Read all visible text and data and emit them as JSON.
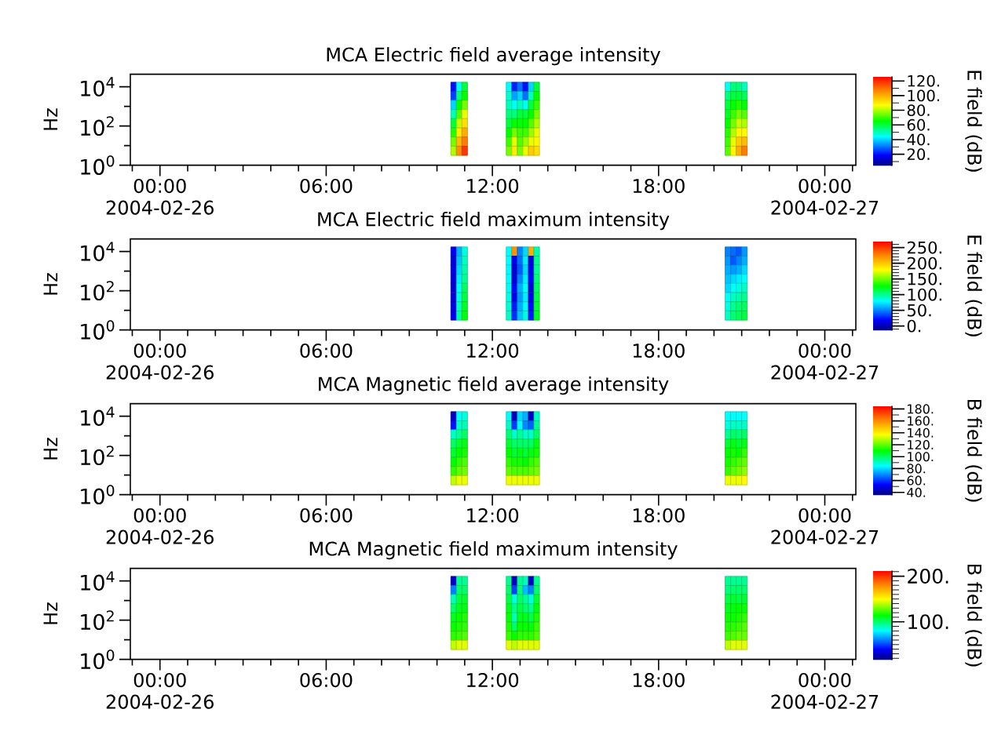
{
  "chart_data": [
    {
      "type": "scatter",
      "title": "MCA  Electric field average intensity",
      "ylabel": "Hz",
      "clabel": "E field (dB)",
      "x": [
        10.6,
        10.6,
        10.6,
        10.6,
        10.6,
        10.6,
        10.6,
        10.6,
        10.8,
        10.8,
        10.8,
        10.8,
        10.8,
        10.8,
        10.8,
        10.8,
        11,
        11,
        11,
        11,
        11,
        11,
        11,
        11,
        12.6,
        12.6,
        12.6,
        12.6,
        12.6,
        12.6,
        12.6,
        12.6,
        12.8,
        12.8,
        12.8,
        12.8,
        12.8,
        12.8,
        12.8,
        12.8,
        13,
        13,
        13,
        13,
        13,
        13,
        13,
        13,
        13.2,
        13.2,
        13.2,
        13.2,
        13.2,
        13.2,
        13.2,
        13.2,
        13.4,
        13.4,
        13.4,
        13.4,
        13.4,
        13.4,
        13.4,
        13.4,
        13.6,
        13.6,
        13.6,
        13.6,
        13.6,
        13.6,
        13.6,
        13.6,
        20.5,
        20.5,
        20.5,
        20.5,
        20.5,
        20.5,
        20.5,
        20.5,
        20.7,
        20.7,
        20.7,
        20.7,
        20.7,
        20.7,
        20.7,
        20.7,
        20.9,
        20.9,
        20.9,
        20.9,
        20.9,
        20.9,
        20.9,
        20.9,
        21.1,
        21.1,
        21.1,
        21.1,
        21.1,
        21.1,
        21.1,
        21.1
      ],
      "values": [
        10000,
        3400,
        1200,
        400,
        140,
        46,
        16,
        5.4,
        10000,
        3400,
        1200,
        400,
        140,
        46,
        16,
        5.4,
        10000,
        3400,
        1200,
        400,
        140,
        46,
        16,
        5.4,
        10000,
        3400,
        1200,
        400,
        140,
        46,
        16,
        5.4,
        10000,
        3400,
        1200,
        400,
        140,
        46,
        16,
        5.4,
        10000,
        3400,
        1200,
        400,
        140,
        46,
        16,
        5.4,
        10000,
        3400,
        1200,
        400,
        140,
        46,
        16,
        5.4,
        10000,
        3400,
        1200,
        400,
        140,
        46,
        16,
        5.4,
        10000,
        3400,
        1200,
        400,
        140,
        46,
        16,
        5.4,
        10000,
        3400,
        1200,
        400,
        140,
        46,
        16,
        5.4,
        10000,
        3400,
        1200,
        400,
        140,
        46,
        16,
        5.4,
        10000,
        3400,
        1200,
        400,
        140,
        46,
        16,
        5.4,
        10000,
        3400,
        1200,
        400,
        140,
        46,
        16,
        5.4
      ],
      "cvalues": [
        20,
        25,
        40,
        50,
        60,
        68,
        75,
        80,
        45,
        55,
        65,
        72,
        82,
        90,
        98,
        105,
        60,
        65,
        75,
        85,
        92,
        100,
        108,
        118,
        45,
        48,
        50,
        55,
        60,
        65,
        70,
        75,
        22,
        35,
        45,
        55,
        65,
        75,
        85,
        90,
        30,
        40,
        50,
        60,
        65,
        70,
        72,
        75,
        20,
        30,
        45,
        60,
        65,
        70,
        78,
        85,
        40,
        50,
        60,
        65,
        72,
        78,
        85,
        95,
        60,
        65,
        70,
        75,
        80,
        85,
        88,
        92,
        45,
        55,
        60,
        62,
        65,
        68,
        70,
        72,
        55,
        60,
        65,
        70,
        75,
        80,
        85,
        88,
        55,
        60,
        68,
        75,
        82,
        88,
        95,
        100,
        50,
        58,
        65,
        72,
        80,
        88,
        98,
        108
      ],
      "xlim": [
        -1.07,
        25.12
      ],
      "xticks": [
        {
          "value": -1,
          "label": null
        },
        {
          "value": 0,
          "label": "00:00\n2004-02-26"
        },
        {
          "value": 1,
          "label": null
        },
        {
          "value": 2,
          "label": null
        },
        {
          "value": 3,
          "label": null
        },
        {
          "value": 4,
          "label": null
        },
        {
          "value": 5,
          "label": null
        },
        {
          "value": 6,
          "label": "06:00"
        },
        {
          "value": 7,
          "label": null
        },
        {
          "value": 8,
          "label": null
        },
        {
          "value": 9,
          "label": null
        },
        {
          "value": 10,
          "label": null
        },
        {
          "value": 11,
          "label": null
        },
        {
          "value": 12,
          "label": "12:00"
        },
        {
          "value": 13,
          "label": null
        },
        {
          "value": 14,
          "label": null
        },
        {
          "value": 15,
          "label": null
        },
        {
          "value": 16,
          "label": null
        },
        {
          "value": 17,
          "label": null
        },
        {
          "value": 18,
          "label": "18:00"
        },
        {
          "value": 19,
          "label": null
        },
        {
          "value": 20,
          "label": null
        },
        {
          "value": 21,
          "label": null
        },
        {
          "value": 22,
          "label": null
        },
        {
          "value": 23,
          "label": null
        },
        {
          "value": 24,
          "label": "00:00\n2004-02-27"
        },
        {
          "value": 25,
          "label": null
        }
      ],
      "ylim": [
        1,
        44000
      ],
      "yticks": [
        {
          "value": 1,
          "label": "10$^{0}$"
        },
        {
          "value": 10,
          "label": null
        },
        {
          "value": 100,
          "label": "10$^{2}$"
        },
        {
          "value": 1000,
          "label": null
        },
        {
          "value": 10000,
          "label": "10$^{4}$"
        }
      ],
      "log": "y",
      "clim": [
        4,
        126
      ],
      "cticks": [
        {
          "value": 10,
          "label": null
        },
        {
          "value": 20,
          "label": "20."
        },
        {
          "value": 30,
          "label": null
        },
        {
          "value": 40,
          "label": "40."
        },
        {
          "value": 50,
          "label": null
        },
        {
          "value": 60,
          "label": "60."
        },
        {
          "value": 70,
          "label": null
        },
        {
          "value": 80,
          "label": "80."
        },
        {
          "value": 90,
          "label": null
        },
        {
          "value": 100,
          "label": "100."
        },
        {
          "value": 110,
          "label": null
        },
        {
          "value": 120,
          "label": "120."
        }
      ],
      "marker": "square"
    },
    {
      "type": "scatter",
      "title": "MCA  Electric field maximum intensity",
      "ylabel": "Hz",
      "clabel": "E field (dB)",
      "x": [
        10.6,
        10.6,
        10.6,
        10.6,
        10.6,
        10.6,
        10.6,
        10.6,
        10.8,
        10.8,
        10.8,
        10.8,
        10.8,
        10.8,
        10.8,
        10.8,
        11,
        11,
        11,
        11,
        11,
        11,
        11,
        11,
        12.6,
        12.6,
        12.6,
        12.6,
        12.6,
        12.6,
        12.6,
        12.6,
        12.8,
        12.8,
        12.8,
        12.8,
        12.8,
        12.8,
        12.8,
        12.8,
        13,
        13,
        13,
        13,
        13,
        13,
        13,
        13,
        13.2,
        13.2,
        13.2,
        13.2,
        13.2,
        13.2,
        13.2,
        13.2,
        13.4,
        13.4,
        13.4,
        13.4,
        13.4,
        13.4,
        13.4,
        13.4,
        13.6,
        13.6,
        13.6,
        13.6,
        13.6,
        13.6,
        13.6,
        13.6,
        20.5,
        20.5,
        20.5,
        20.5,
        20.5,
        20.5,
        20.5,
        20.5,
        20.7,
        20.7,
        20.7,
        20.7,
        20.7,
        20.7,
        20.7,
        20.7,
        20.9,
        20.9,
        20.9,
        20.9,
        20.9,
        20.9,
        20.9,
        20.9,
        21.1,
        21.1,
        21.1,
        21.1,
        21.1,
        21.1,
        21.1,
        21.1
      ],
      "values": [
        10000,
        3400,
        1200,
        400,
        140,
        46,
        16,
        5.4,
        10000,
        3400,
        1200,
        400,
        140,
        46,
        16,
        5.4,
        10000,
        3400,
        1200,
        400,
        140,
        46,
        16,
        5.4,
        10000,
        3400,
        1200,
        400,
        140,
        46,
        16,
        5.4,
        10000,
        3400,
        1200,
        400,
        140,
        46,
        16,
        5.4,
        10000,
        3400,
        1200,
        400,
        140,
        46,
        16,
        5.4,
        10000,
        3400,
        1200,
        400,
        140,
        46,
        16,
        5.4,
        10000,
        3400,
        1200,
        400,
        140,
        46,
        16,
        5.4,
        10000,
        3400,
        1200,
        400,
        140,
        46,
        16,
        5.4,
        10000,
        3400,
        1200,
        400,
        140,
        46,
        16,
        5.4,
        10000,
        3400,
        1200,
        400,
        140,
        46,
        16,
        5.4,
        10000,
        3400,
        1200,
        400,
        140,
        46,
        16,
        5.4,
        10000,
        3400,
        1200,
        400,
        140,
        46,
        16,
        5.4
      ],
      "cvalues": [
        15,
        10,
        12,
        10,
        8,
        10,
        12,
        15,
        60,
        65,
        70,
        75,
        80,
        85,
        90,
        95,
        85,
        90,
        95,
        100,
        110,
        115,
        120,
        125,
        80,
        80,
        78,
        80,
        82,
        85,
        88,
        90,
        220,
        15,
        8,
        10,
        20,
        15,
        25,
        30,
        50,
        45,
        40,
        50,
        60,
        55,
        60,
        65,
        70,
        75,
        70,
        75,
        80,
        75,
        80,
        85,
        210,
        10,
        15,
        20,
        10,
        15,
        20,
        25,
        95,
        100,
        100,
        105,
        110,
        115,
        118,
        120,
        50,
        55,
        60,
        65,
        70,
        80,
        85,
        90,
        45,
        40,
        55,
        70,
        80,
        90,
        100,
        105,
        40,
        50,
        60,
        75,
        85,
        95,
        105,
        110,
        55,
        60,
        70,
        80,
        90,
        100,
        110,
        115
      ],
      "xlim": [
        -1.07,
        25.12
      ],
      "xticks": [
        {
          "value": -1,
          "label": null
        },
        {
          "value": 0,
          "label": "00:00\n2004-02-26"
        },
        {
          "value": 1,
          "label": null
        },
        {
          "value": 2,
          "label": null
        },
        {
          "value": 3,
          "label": null
        },
        {
          "value": 4,
          "label": null
        },
        {
          "value": 5,
          "label": null
        },
        {
          "value": 6,
          "label": "06:00"
        },
        {
          "value": 7,
          "label": null
        },
        {
          "value": 8,
          "label": null
        },
        {
          "value": 9,
          "label": null
        },
        {
          "value": 10,
          "label": null
        },
        {
          "value": 11,
          "label": null
        },
        {
          "value": 12,
          "label": "12:00"
        },
        {
          "value": 13,
          "label": null
        },
        {
          "value": 14,
          "label": null
        },
        {
          "value": 15,
          "label": null
        },
        {
          "value": 16,
          "label": null
        },
        {
          "value": 17,
          "label": null
        },
        {
          "value": 18,
          "label": "18:00"
        },
        {
          "value": 19,
          "label": null
        },
        {
          "value": 20,
          "label": null
        },
        {
          "value": 21,
          "label": null
        },
        {
          "value": 22,
          "label": null
        },
        {
          "value": 23,
          "label": null
        },
        {
          "value": 24,
          "label": "00:00\n2004-02-27"
        },
        {
          "value": 25,
          "label": null
        }
      ],
      "ylim": [
        1,
        44000
      ],
      "yticks": [
        {
          "value": 1,
          "label": "10$^{0}$"
        },
        {
          "value": 10,
          "label": null
        },
        {
          "value": 100,
          "label": "10$^{2}$"
        },
        {
          "value": 1000,
          "label": null
        },
        {
          "value": 10000,
          "label": "10$^{4}$"
        }
      ],
      "log": "y",
      "clim": [
        -15,
        270
      ],
      "cticks": [
        {
          "value": -10,
          "label": null
        },
        {
          "value": 0,
          "label": "0."
        },
        {
          "value": 10,
          "label": null
        },
        {
          "value": 20,
          "label": null
        },
        {
          "value": 30,
          "label": null
        },
        {
          "value": 40,
          "label": null
        },
        {
          "value": 50,
          "label": "50."
        },
        {
          "value": 60,
          "label": null
        },
        {
          "value": 70,
          "label": null
        },
        {
          "value": 80,
          "label": null
        },
        {
          "value": 90,
          "label": null
        },
        {
          "value": 100,
          "label": "100."
        },
        {
          "value": 110,
          "label": null
        },
        {
          "value": 120,
          "label": null
        },
        {
          "value": 130,
          "label": null
        },
        {
          "value": 140,
          "label": null
        },
        {
          "value": 150,
          "label": "150."
        },
        {
          "value": 160,
          "label": null
        },
        {
          "value": 170,
          "label": null
        },
        {
          "value": 180,
          "label": null
        },
        {
          "value": 190,
          "label": null
        },
        {
          "value": 200,
          "label": "200."
        },
        {
          "value": 210,
          "label": null
        },
        {
          "value": 220,
          "label": null
        },
        {
          "value": 230,
          "label": null
        },
        {
          "value": 240,
          "label": null
        },
        {
          "value": 250,
          "label": "250."
        },
        {
          "value": 260,
          "label": null
        }
      ],
      "marker": "square"
    },
    {
      "type": "scatter",
      "title": "MCA  Magnetic field average intensity",
      "ylabel": "Hz",
      "clabel": "B field (dB)",
      "x": [
        10.6,
        10.6,
        10.6,
        10.6,
        10.6,
        10.6,
        10.6,
        10.6,
        10.8,
        10.8,
        10.8,
        10.8,
        10.8,
        10.8,
        10.8,
        10.8,
        11,
        11,
        11,
        11,
        11,
        11,
        11,
        11,
        12.6,
        12.6,
        12.6,
        12.6,
        12.6,
        12.6,
        12.6,
        12.6,
        12.8,
        12.8,
        12.8,
        12.8,
        12.8,
        12.8,
        12.8,
        12.8,
        13,
        13,
        13,
        13,
        13,
        13,
        13,
        13,
        13.2,
        13.2,
        13.2,
        13.2,
        13.2,
        13.2,
        13.2,
        13.2,
        13.4,
        13.4,
        13.4,
        13.4,
        13.4,
        13.4,
        13.4,
        13.4,
        13.6,
        13.6,
        13.6,
        13.6,
        13.6,
        13.6,
        13.6,
        13.6,
        20.5,
        20.5,
        20.5,
        20.5,
        20.5,
        20.5,
        20.5,
        20.5,
        20.7,
        20.7,
        20.7,
        20.7,
        20.7,
        20.7,
        20.7,
        20.7,
        20.9,
        20.9,
        20.9,
        20.9,
        20.9,
        20.9,
        20.9,
        20.9,
        21.1,
        21.1,
        21.1,
        21.1,
        21.1,
        21.1,
        21.1,
        21.1
      ],
      "values": [
        10000,
        3400,
        1200,
        400,
        140,
        46,
        16,
        5.4,
        10000,
        3400,
        1200,
        400,
        140,
        46,
        16,
        5.4,
        10000,
        3400,
        1200,
        400,
        140,
        46,
        16,
        5.4,
        10000,
        3400,
        1200,
        400,
        140,
        46,
        16,
        5.4,
        10000,
        3400,
        1200,
        400,
        140,
        46,
        16,
        5.4,
        10000,
        3400,
        1200,
        400,
        140,
        46,
        16,
        5.4,
        10000,
        3400,
        1200,
        400,
        140,
        46,
        16,
        5.4,
        10000,
        3400,
        1200,
        400,
        140,
        46,
        16,
        5.4,
        10000,
        3400,
        1200,
        400,
        140,
        46,
        16,
        5.4,
        10000,
        3400,
        1200,
        400,
        140,
        46,
        16,
        5.4,
        10000,
        3400,
        1200,
        400,
        140,
        46,
        16,
        5.4,
        10000,
        3400,
        1200,
        400,
        140,
        46,
        16,
        5.4,
        10000,
        3400,
        1200,
        400,
        140,
        46,
        16,
        5.4
      ],
      "cvalues": [
        45,
        55,
        90,
        100,
        105,
        110,
        115,
        130,
        85,
        90,
        95,
        105,
        110,
        115,
        120,
        135,
        88,
        92,
        100,
        108,
        112,
        118,
        122,
        135,
        85,
        90,
        98,
        105,
        110,
        115,
        120,
        135,
        45,
        60,
        90,
        100,
        105,
        112,
        118,
        135,
        80,
        85,
        95,
        100,
        108,
        112,
        118,
        135,
        75,
        70,
        90,
        100,
        105,
        110,
        118,
        135,
        45,
        65,
        90,
        100,
        108,
        115,
        120,
        135,
        90,
        95,
        100,
        108,
        112,
        118,
        122,
        135,
        85,
        88,
        95,
        105,
        110,
        112,
        115,
        135,
        85,
        90,
        100,
        108,
        112,
        115,
        120,
        135,
        85,
        90,
        98,
        105,
        110,
        118,
        122,
        135,
        85,
        90,
        100,
        108,
        115,
        120,
        125,
        138
      ],
      "xlim": [
        -1.07,
        25.12
      ],
      "xticks": [
        {
          "value": -1,
          "label": null
        },
        {
          "value": 0,
          "label": "00:00\n2004-02-26"
        },
        {
          "value": 1,
          "label": null
        },
        {
          "value": 2,
          "label": null
        },
        {
          "value": 3,
          "label": null
        },
        {
          "value": 4,
          "label": null
        },
        {
          "value": 5,
          "label": null
        },
        {
          "value": 6,
          "label": "06:00"
        },
        {
          "value": 7,
          "label": null
        },
        {
          "value": 8,
          "label": null
        },
        {
          "value": 9,
          "label": null
        },
        {
          "value": 10,
          "label": null
        },
        {
          "value": 11,
          "label": null
        },
        {
          "value": 12,
          "label": "12:00"
        },
        {
          "value": 13,
          "label": null
        },
        {
          "value": 14,
          "label": null
        },
        {
          "value": 15,
          "label": null
        },
        {
          "value": 16,
          "label": null
        },
        {
          "value": 17,
          "label": null
        },
        {
          "value": 18,
          "label": "18:00"
        },
        {
          "value": 19,
          "label": null
        },
        {
          "value": 20,
          "label": null
        },
        {
          "value": 21,
          "label": null
        },
        {
          "value": 22,
          "label": null
        },
        {
          "value": 23,
          "label": null
        },
        {
          "value": 24,
          "label": "00:00\n2004-02-27"
        },
        {
          "value": 25,
          "label": null
        }
      ],
      "ylim": [
        1,
        44000
      ],
      "yticks": [
        {
          "value": 1,
          "label": "10$^{0}$"
        },
        {
          "value": 10,
          "label": null
        },
        {
          "value": 100,
          "label": "10$^{2}$"
        },
        {
          "value": 1000,
          "label": null
        },
        {
          "value": 10000,
          "label": "10$^{4}$"
        }
      ],
      "log": "y",
      "clim": [
        35,
        185
      ],
      "cticks": [
        {
          "value": 40,
          "label": "40."
        },
        {
          "value": 50,
          "label": null
        },
        {
          "value": 60,
          "label": "60."
        },
        {
          "value": 70,
          "label": null
        },
        {
          "value": 80,
          "label": "80."
        },
        {
          "value": 90,
          "label": null
        },
        {
          "value": 100,
          "label": "100."
        },
        {
          "value": 110,
          "label": null
        },
        {
          "value": 120,
          "label": "120."
        },
        {
          "value": 130,
          "label": null
        },
        {
          "value": 140,
          "label": "140."
        },
        {
          "value": 150,
          "label": null
        },
        {
          "value": 160,
          "label": "160."
        },
        {
          "value": 170,
          "label": null
        },
        {
          "value": 180,
          "label": "180."
        }
      ],
      "marker": "square"
    },
    {
      "type": "scatter",
      "title": "MCA  Magnetic field maximum intensity",
      "ylabel": "Hz",
      "clabel": "B field (dB)",
      "x": [
        10.6,
        10.6,
        10.6,
        10.6,
        10.6,
        10.6,
        10.6,
        10.6,
        10.8,
        10.8,
        10.8,
        10.8,
        10.8,
        10.8,
        10.8,
        10.8,
        11,
        11,
        11,
        11,
        11,
        11,
        11,
        11,
        12.6,
        12.6,
        12.6,
        12.6,
        12.6,
        12.6,
        12.6,
        12.6,
        12.8,
        12.8,
        12.8,
        12.8,
        12.8,
        12.8,
        12.8,
        12.8,
        13,
        13,
        13,
        13,
        13,
        13,
        13,
        13,
        13.2,
        13.2,
        13.2,
        13.2,
        13.2,
        13.2,
        13.2,
        13.2,
        13.4,
        13.4,
        13.4,
        13.4,
        13.4,
        13.4,
        13.4,
        13.4,
        13.6,
        13.6,
        13.6,
        13.6,
        13.6,
        13.6,
        13.6,
        13.6,
        20.5,
        20.5,
        20.5,
        20.5,
        20.5,
        20.5,
        20.5,
        20.5,
        20.7,
        20.7,
        20.7,
        20.7,
        20.7,
        20.7,
        20.7,
        20.7,
        20.9,
        20.9,
        20.9,
        20.9,
        20.9,
        20.9,
        20.9,
        20.9,
        21.1,
        21.1,
        21.1,
        21.1,
        21.1,
        21.1,
        21.1,
        21.1
      ],
      "values": [
        10000,
        3400,
        1200,
        400,
        140,
        46,
        16,
        5.4,
        10000,
        3400,
        1200,
        400,
        140,
        46,
        16,
        5.4,
        10000,
        3400,
        1200,
        400,
        140,
        46,
        16,
        5.4,
        10000,
        3400,
        1200,
        400,
        140,
        46,
        16,
        5.4,
        10000,
        3400,
        1200,
        400,
        140,
        46,
        16,
        5.4,
        10000,
        3400,
        1200,
        400,
        140,
        46,
        16,
        5.4,
        10000,
        3400,
        1200,
        400,
        140,
        46,
        16,
        5.4,
        10000,
        3400,
        1200,
        400,
        140,
        46,
        16,
        5.4,
        10000,
        3400,
        1200,
        400,
        140,
        46,
        16,
        5.4,
        10000,
        3400,
        1200,
        400,
        140,
        46,
        16,
        5.4,
        10000,
        3400,
        1200,
        400,
        140,
        46,
        16,
        5.4,
        10000,
        3400,
        1200,
        400,
        140,
        46,
        16,
        5.4,
        10000,
        3400,
        1200,
        400,
        140,
        46,
        16,
        5.4
      ],
      "cvalues": [
        30,
        60,
        90,
        100,
        110,
        115,
        120,
        140,
        95,
        100,
        105,
        110,
        115,
        118,
        122,
        145,
        95,
        100,
        108,
        112,
        118,
        120,
        125,
        145,
        95,
        100,
        105,
        110,
        115,
        118,
        122,
        145,
        30,
        50,
        85,
        95,
        90,
        100,
        115,
        140,
        95,
        98,
        100,
        105,
        110,
        115,
        120,
        145,
        90,
        70,
        95,
        100,
        110,
        115,
        120,
        145,
        30,
        60,
        85,
        95,
        105,
        112,
        120,
        145,
        95,
        100,
        108,
        112,
        118,
        122,
        125,
        145,
        95,
        98,
        105,
        110,
        115,
        118,
        122,
        140,
        95,
        100,
        108,
        112,
        115,
        120,
        125,
        145,
        95,
        100,
        105,
        115,
        118,
        122,
        128,
        145,
        95,
        100,
        108,
        115,
        120,
        125,
        128,
        145
      ],
      "xlim": [
        -1.07,
        25.12
      ],
      "xticks": [
        {
          "value": -1,
          "label": null
        },
        {
          "value": 0,
          "label": "00:00\n2004-02-26"
        },
        {
          "value": 1,
          "label": null
        },
        {
          "value": 2,
          "label": null
        },
        {
          "value": 3,
          "label": null
        },
        {
          "value": 4,
          "label": null
        },
        {
          "value": 5,
          "label": null
        },
        {
          "value": 6,
          "label": "06:00"
        },
        {
          "value": 7,
          "label": null
        },
        {
          "value": 8,
          "label": null
        },
        {
          "value": 9,
          "label": null
        },
        {
          "value": 10,
          "label": null
        },
        {
          "value": 11,
          "label": null
        },
        {
          "value": 12,
          "label": "12:00"
        },
        {
          "value": 13,
          "label": null
        },
        {
          "value": 14,
          "label": null
        },
        {
          "value": 15,
          "label": null
        },
        {
          "value": 16,
          "label": null
        },
        {
          "value": 17,
          "label": null
        },
        {
          "value": 18,
          "label": "18:00"
        },
        {
          "value": 19,
          "label": null
        },
        {
          "value": 20,
          "label": null
        },
        {
          "value": 21,
          "label": null
        },
        {
          "value": 22,
          "label": null
        },
        {
          "value": 23,
          "label": null
        },
        {
          "value": 24,
          "label": "00:00\n2004-02-27"
        },
        {
          "value": 25,
          "label": null
        }
      ],
      "ylim": [
        1,
        44000
      ],
      "yticks": [
        {
          "value": 1,
          "label": "10$^{0}$"
        },
        {
          "value": 10,
          "label": null
        },
        {
          "value": 100,
          "label": "10$^{2}$"
        },
        {
          "value": 1000,
          "label": null
        },
        {
          "value": 10000,
          "label": "10$^{4}$"
        }
      ],
      "log": "y",
      "clim": [
        16,
        212
      ],
      "cticks": [
        {
          "value": 20,
          "label": null
        },
        {
          "value": 30,
          "label": null
        },
        {
          "value": 40,
          "label": null
        },
        {
          "value": 50,
          "label": null
        },
        {
          "value": 60,
          "label": null
        },
        {
          "value": 70,
          "label": null
        },
        {
          "value": 80,
          "label": null
        },
        {
          "value": 90,
          "label": null
        },
        {
          "value": 100,
          "label": "100."
        },
        {
          "value": 110,
          "label": null
        },
        {
          "value": 120,
          "label": null
        },
        {
          "value": 130,
          "label": null
        },
        {
          "value": 140,
          "label": null
        },
        {
          "value": 150,
          "label": null
        },
        {
          "value": 160,
          "label": null
        },
        {
          "value": 170,
          "label": null
        },
        {
          "value": 180,
          "label": null
        },
        {
          "value": 190,
          "label": null
        },
        {
          "value": 200,
          "label": "200."
        },
        {
          "value": 210,
          "label": null
        }
      ],
      "marker": "square"
    }
  ]
}
